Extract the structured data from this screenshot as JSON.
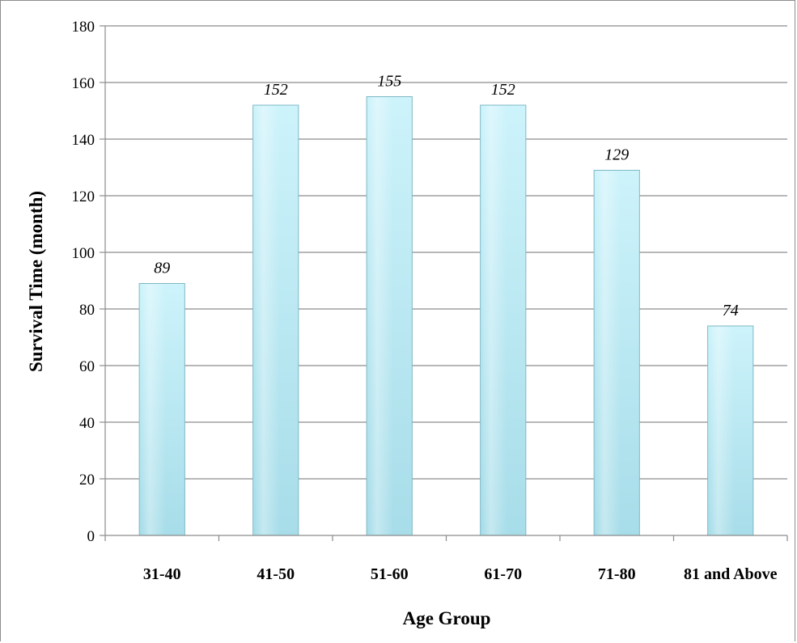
{
  "chart_data": {
    "type": "bar",
    "categories": [
      "31-40",
      "41-50",
      "51-60",
      "61-70",
      "71-80",
      "81 and Above"
    ],
    "values": [
      89,
      152,
      155,
      152,
      129,
      74
    ],
    "data_labels": [
      "89",
      "152",
      "155",
      "152",
      "129",
      "74"
    ],
    "title": "",
    "xlabel": "Age Group",
    "ylabel": "Survival Time (month)",
    "ylim": [
      0,
      180
    ],
    "yticks": [
      0,
      20,
      40,
      60,
      80,
      100,
      120,
      140,
      160,
      180
    ],
    "ytick_labels": [
      "0",
      "20",
      "40",
      "60",
      "80",
      "100",
      "120",
      "140",
      "160",
      "180"
    ],
    "grid": "horizontal",
    "legend": "none",
    "bar_color_top": "#cdf3fb",
    "bar_color_bottom": "#a7dde9",
    "bar_edge_color": "#7fb8c6"
  }
}
